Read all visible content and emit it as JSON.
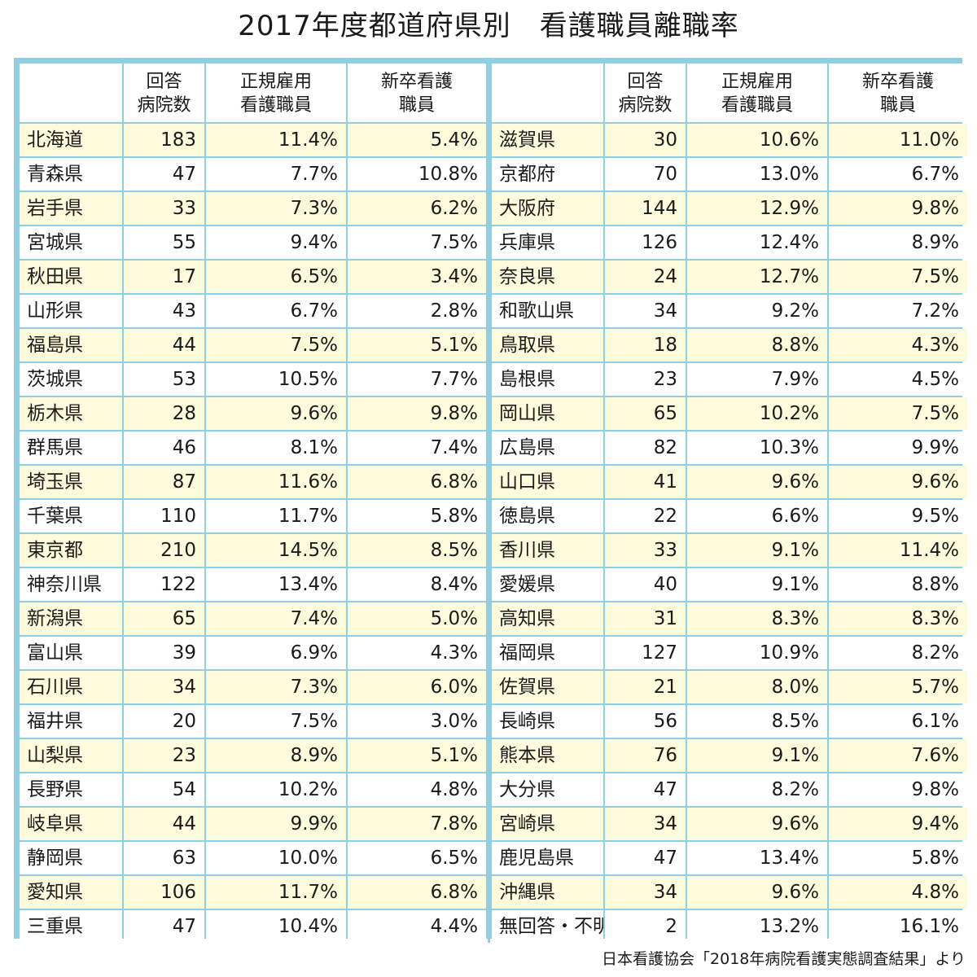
{
  "title": "2017年度都道府県別　看護職員離職率",
  "headers": {
    "pref": "",
    "hospitals": "回答\n病院数",
    "regular": "正規雇用\n看護職員",
    "new_grad": "新卒看護\n職員"
  },
  "left_rows": [
    {
      "pref": "北海道",
      "hospitals": "183",
      "regular": "11.4%",
      "new_grad": "5.4%"
    },
    {
      "pref": "青森県",
      "hospitals": "47",
      "regular": "7.7%",
      "new_grad": "10.8%"
    },
    {
      "pref": "岩手県",
      "hospitals": "33",
      "regular": "7.3%",
      "new_grad": "6.2%"
    },
    {
      "pref": "宮城県",
      "hospitals": "55",
      "regular": "9.4%",
      "new_grad": "7.5%"
    },
    {
      "pref": "秋田県",
      "hospitals": "17",
      "regular": "6.5%",
      "new_grad": "3.4%"
    },
    {
      "pref": "山形県",
      "hospitals": "43",
      "regular": "6.7%",
      "new_grad": "2.8%"
    },
    {
      "pref": "福島県",
      "hospitals": "44",
      "regular": "7.5%",
      "new_grad": "5.1%"
    },
    {
      "pref": "茨城県",
      "hospitals": "53",
      "regular": "10.5%",
      "new_grad": "7.7%"
    },
    {
      "pref": "栃木県",
      "hospitals": "28",
      "regular": "9.6%",
      "new_grad": "9.8%"
    },
    {
      "pref": "群馬県",
      "hospitals": "46",
      "regular": "8.1%",
      "new_grad": "7.4%"
    },
    {
      "pref": "埼玉県",
      "hospitals": "87",
      "regular": "11.6%",
      "new_grad": "6.8%"
    },
    {
      "pref": "千葉県",
      "hospitals": "110",
      "regular": "11.7%",
      "new_grad": "5.8%"
    },
    {
      "pref": "東京都",
      "hospitals": "210",
      "regular": "14.5%",
      "new_grad": "8.5%"
    },
    {
      "pref": "神奈川県",
      "hospitals": "122",
      "regular": "13.4%",
      "new_grad": "8.4%"
    },
    {
      "pref": "新潟県",
      "hospitals": "65",
      "regular": "7.4%",
      "new_grad": "5.0%"
    },
    {
      "pref": "富山県",
      "hospitals": "39",
      "regular": "6.9%",
      "new_grad": "4.3%"
    },
    {
      "pref": "石川県",
      "hospitals": "34",
      "regular": "7.3%",
      "new_grad": "6.0%"
    },
    {
      "pref": "福井県",
      "hospitals": "20",
      "regular": "7.5%",
      "new_grad": "3.0%"
    },
    {
      "pref": "山梨県",
      "hospitals": "23",
      "regular": "8.9%",
      "new_grad": "5.1%"
    },
    {
      "pref": "長野県",
      "hospitals": "54",
      "regular": "10.2%",
      "new_grad": "4.8%"
    },
    {
      "pref": "岐阜県",
      "hospitals": "44",
      "regular": "9.9%",
      "new_grad": "7.8%"
    },
    {
      "pref": "静岡県",
      "hospitals": "63",
      "regular": "10.0%",
      "new_grad": "6.5%"
    },
    {
      "pref": "愛知県",
      "hospitals": "106",
      "regular": "11.7%",
      "new_grad": "6.8%"
    },
    {
      "pref": "三重県",
      "hospitals": "47",
      "regular": "10.4%",
      "new_grad": "4.4%"
    }
  ],
  "right_rows": [
    {
      "pref": "滋賀県",
      "hospitals": "30",
      "regular": "10.6%",
      "new_grad": "11.0%"
    },
    {
      "pref": "京都府",
      "hospitals": "70",
      "regular": "13.0%",
      "new_grad": "6.7%"
    },
    {
      "pref": "大阪府",
      "hospitals": "144",
      "regular": "12.9%",
      "new_grad": "9.8%"
    },
    {
      "pref": "兵庫県",
      "hospitals": "126",
      "regular": "12.4%",
      "new_grad": "8.9%"
    },
    {
      "pref": "奈良県",
      "hospitals": "24",
      "regular": "12.7%",
      "new_grad": "7.5%"
    },
    {
      "pref": "和歌山県",
      "hospitals": "34",
      "regular": "9.2%",
      "new_grad": "7.2%"
    },
    {
      "pref": "鳥取県",
      "hospitals": "18",
      "regular": "8.8%",
      "new_grad": "4.3%"
    },
    {
      "pref": "島根県",
      "hospitals": "23",
      "regular": "7.9%",
      "new_grad": "4.5%"
    },
    {
      "pref": "岡山県",
      "hospitals": "65",
      "regular": "10.2%",
      "new_grad": "7.5%"
    },
    {
      "pref": "広島県",
      "hospitals": "82",
      "regular": "10.3%",
      "new_grad": "9.9%"
    },
    {
      "pref": "山口県",
      "hospitals": "41",
      "regular": "9.6%",
      "new_grad": "9.6%"
    },
    {
      "pref": "徳島県",
      "hospitals": "22",
      "regular": "6.6%",
      "new_grad": "9.5%"
    },
    {
      "pref": "香川県",
      "hospitals": "33",
      "regular": "9.1%",
      "new_grad": "11.4%"
    },
    {
      "pref": "愛媛県",
      "hospitals": "40",
      "regular": "9.1%",
      "new_grad": "8.8%"
    },
    {
      "pref": "高知県",
      "hospitals": "31",
      "regular": "8.3%",
      "new_grad": "8.3%"
    },
    {
      "pref": "福岡県",
      "hospitals": "127",
      "regular": "10.9%",
      "new_grad": "8.2%"
    },
    {
      "pref": "佐賀県",
      "hospitals": "21",
      "regular": "8.0%",
      "new_grad": "5.7%"
    },
    {
      "pref": "長崎県",
      "hospitals": "56",
      "regular": "8.5%",
      "new_grad": "6.1%"
    },
    {
      "pref": "熊本県",
      "hospitals": "76",
      "regular": "9.1%",
      "new_grad": "7.6%"
    },
    {
      "pref": "大分県",
      "hospitals": "47",
      "regular": "8.2%",
      "new_grad": "9.8%"
    },
    {
      "pref": "宮崎県",
      "hospitals": "34",
      "regular": "9.6%",
      "new_grad": "9.4%"
    },
    {
      "pref": "鹿児島県",
      "hospitals": "47",
      "regular": "13.4%",
      "new_grad": "5.8%"
    },
    {
      "pref": "沖縄県",
      "hospitals": "34",
      "regular": "9.6%",
      "new_grad": "4.8%"
    },
    {
      "pref": "無回答・不明",
      "hospitals": "2",
      "regular": "13.2%",
      "new_grad": "16.1%"
    }
  ],
  "source": "日本看護協会「2018年病院看護実態調査結果」より",
  "colors": {
    "frame": "#8ecfe3",
    "row_highlight": "#fefbdc",
    "row_plain": "#ffffff"
  }
}
